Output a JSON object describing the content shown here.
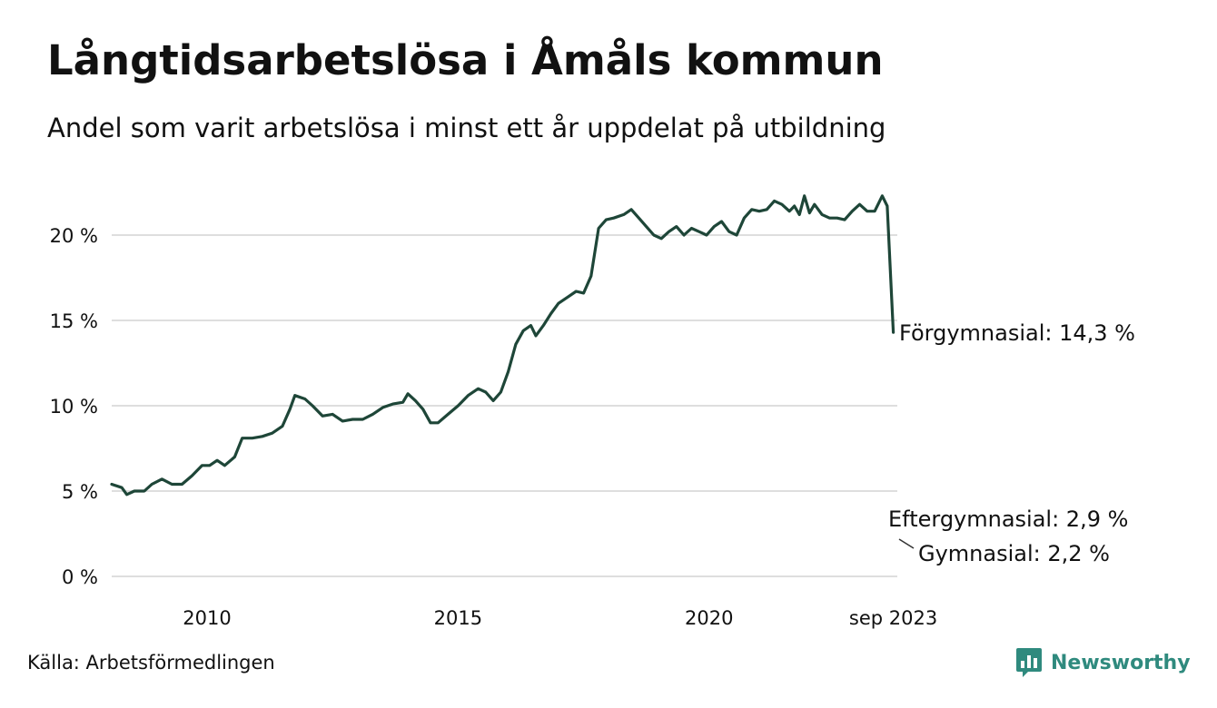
{
  "title": "Långtidsarbetslösa i Åmåls kommun",
  "subtitle": "Andel som varit arbetslösa i minst ett år uppdelat på utbildning",
  "source": "Källa: Arbetsförmedlingen",
  "brand": "Newsworthy",
  "colors": {
    "forgymnasial": "#1e4638",
    "eftergymnasial": "#1a9487",
    "gymnasial": "#d0a453",
    "grid": "#dedede",
    "brand": "#2f8a7e"
  },
  "chart_data": {
    "type": "line",
    "title": "Långtidsarbetslösa i Åmåls kommun",
    "xlabel": "",
    "ylabel": "",
    "xlim": [
      2008.1,
      2023.75
    ],
    "ylim": [
      0,
      22.5
    ],
    "yticks": [
      0,
      5,
      10,
      15,
      20
    ],
    "ytick_labels": [
      "0 %",
      "5 %",
      "10 %",
      "15 %",
      "20 %"
    ],
    "xticks": [
      2010,
      2015,
      2020,
      2023.67
    ],
    "xtick_labels": [
      "2010",
      "2015",
      "2020",
      "sep 2023"
    ],
    "grid": true,
    "series": [
      {
        "key": "forgymnasial",
        "name": "Förgymnasial",
        "label": "Förgymnasial: 14,3 %",
        "points": [
          [
            2008.1,
            5.4
          ],
          [
            2008.3,
            5.2
          ],
          [
            2008.4,
            4.8
          ],
          [
            2008.55,
            5.0
          ],
          [
            2008.75,
            5.0
          ],
          [
            2008.9,
            5.4
          ],
          [
            2009.1,
            5.7
          ],
          [
            2009.3,
            5.4
          ],
          [
            2009.5,
            5.4
          ],
          [
            2009.7,
            5.9
          ],
          [
            2009.9,
            6.5
          ],
          [
            2010.05,
            6.5
          ],
          [
            2010.2,
            6.8
          ],
          [
            2010.35,
            6.5
          ],
          [
            2010.55,
            7.0
          ],
          [
            2010.7,
            8.1
          ],
          [
            2010.9,
            8.1
          ],
          [
            2011.1,
            8.2
          ],
          [
            2011.3,
            8.4
          ],
          [
            2011.5,
            8.8
          ],
          [
            2011.65,
            9.8
          ],
          [
            2011.75,
            10.6
          ],
          [
            2011.95,
            10.4
          ],
          [
            2012.1,
            10.0
          ],
          [
            2012.3,
            9.4
          ],
          [
            2012.5,
            9.5
          ],
          [
            2012.7,
            9.1
          ],
          [
            2012.9,
            9.2
          ],
          [
            2013.1,
            9.2
          ],
          [
            2013.3,
            9.5
          ],
          [
            2013.5,
            9.9
          ],
          [
            2013.7,
            10.1
          ],
          [
            2013.9,
            10.2
          ],
          [
            2014.0,
            10.7
          ],
          [
            2014.15,
            10.3
          ],
          [
            2014.3,
            9.8
          ],
          [
            2014.45,
            9.0
          ],
          [
            2014.6,
            9.0
          ],
          [
            2014.8,
            9.5
          ],
          [
            2015.0,
            10.0
          ],
          [
            2015.2,
            10.6
          ],
          [
            2015.4,
            11.0
          ],
          [
            2015.55,
            10.8
          ],
          [
            2015.7,
            10.3
          ],
          [
            2015.85,
            10.8
          ],
          [
            2016.0,
            12.0
          ],
          [
            2016.15,
            13.6
          ],
          [
            2016.3,
            14.4
          ],
          [
            2016.45,
            14.7
          ],
          [
            2016.55,
            14.1
          ],
          [
            2016.7,
            14.7
          ],
          [
            2016.85,
            15.4
          ],
          [
            2017.0,
            16.0
          ],
          [
            2017.2,
            16.4
          ],
          [
            2017.35,
            16.7
          ],
          [
            2017.5,
            16.6
          ],
          [
            2017.65,
            17.6
          ],
          [
            2017.8,
            20.4
          ],
          [
            2017.95,
            20.9
          ],
          [
            2018.1,
            21.0
          ],
          [
            2018.3,
            21.2
          ],
          [
            2018.45,
            21.5
          ],
          [
            2018.6,
            21.0
          ],
          [
            2018.75,
            20.5
          ],
          [
            2018.9,
            20.0
          ],
          [
            2019.05,
            19.8
          ],
          [
            2019.2,
            20.2
          ],
          [
            2019.35,
            20.5
          ],
          [
            2019.5,
            20.0
          ],
          [
            2019.65,
            20.4
          ],
          [
            2019.8,
            20.2
          ],
          [
            2019.95,
            20.0
          ],
          [
            2020.1,
            20.5
          ],
          [
            2020.25,
            20.8
          ],
          [
            2020.4,
            20.2
          ],
          [
            2020.55,
            20.0
          ],
          [
            2020.7,
            21.0
          ],
          [
            2020.85,
            21.5
          ],
          [
            2021.0,
            21.4
          ],
          [
            2021.15,
            21.5
          ],
          [
            2021.3,
            22.0
          ],
          [
            2021.45,
            21.8
          ],
          [
            2021.6,
            21.4
          ],
          [
            2021.7,
            21.7
          ],
          [
            2021.8,
            21.2
          ],
          [
            2021.9,
            22.3
          ],
          [
            2022.0,
            21.3
          ],
          [
            2022.1,
            21.8
          ],
          [
            2022.25,
            21.2
          ],
          [
            2022.4,
            21.0
          ],
          [
            2022.55,
            21.0
          ],
          [
            2022.7,
            20.9
          ],
          [
            2022.85,
            21.4
          ],
          [
            2023.0,
            21.8
          ],
          [
            2023.15,
            21.4
          ],
          [
            2023.3,
            21.4
          ],
          [
            2023.45,
            22.3
          ],
          [
            2023.55,
            21.7
          ],
          [
            2023.67,
            14.3
          ]
        ]
      }
    ]
  },
  "labels": {
    "eftergymnasial": "Eftergymnasial:  2,9 %",
    "gymnasial": "Gymnasial:  2,2 %"
  }
}
